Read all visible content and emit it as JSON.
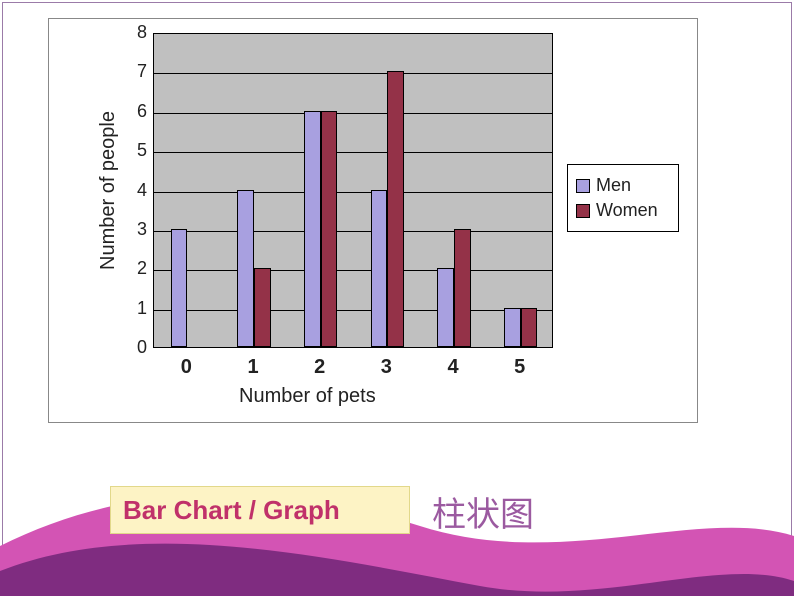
{
  "chart": {
    "type": "bar",
    "plot_bg": "#c0c0c0",
    "container_bg": "#ffffff",
    "grid_color": "#000000",
    "categories": [
      "0",
      "1",
      "2",
      "3",
      "4",
      "5"
    ],
    "series": [
      {
        "name": "Men",
        "color": "#a8a0e0",
        "values": [
          3,
          4,
          6,
          4,
          2,
          1
        ]
      },
      {
        "name": "Women",
        "color": "#943248",
        "values": [
          0,
          2,
          6,
          7,
          3,
          1
        ]
      }
    ],
    "ymin": 0,
    "ymax": 8,
    "ytick_step": 1,
    "ylabel": "Number of people",
    "xlabel": "Number of pets",
    "label_fontsize": 20,
    "tick_fontsize": 18,
    "bar_width_ratio": 0.32,
    "group_width_ratio": 0.78
  },
  "legend": {
    "items": [
      {
        "label": "Men",
        "color": "#a8a0e0"
      },
      {
        "label": "Women",
        "color": "#943248"
      }
    ]
  },
  "caption": {
    "en": "Bar Chart /  Graph",
    "cn": "柱状图",
    "box_bg": "#fdf3c5",
    "en_color": "#c0316a",
    "cn_color": "#9b5aa0"
  },
  "decor": {
    "wave1_color": "#d354b4",
    "wave2_color": "#7a2a7d"
  }
}
